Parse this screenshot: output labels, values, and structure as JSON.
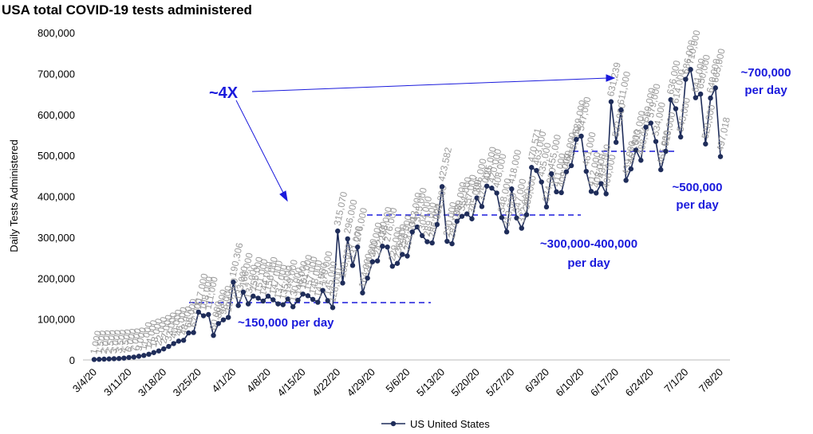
{
  "chart_data": {
    "type": "line",
    "title": "USA total COVID-19 tests administered",
    "y_label": "Daily Tests Administered",
    "categories": [
      "3/4/20",
      null,
      null,
      null,
      null,
      null,
      null,
      "3/11/20",
      null,
      null,
      null,
      null,
      null,
      null,
      "3/18/20",
      null,
      null,
      null,
      null,
      null,
      null,
      "3/25/20",
      null,
      null,
      null,
      null,
      null,
      null,
      "4/1/20",
      null,
      null,
      null,
      null,
      null,
      null,
      "4/8/20",
      null,
      null,
      null,
      null,
      null,
      null,
      "4/15/20",
      null,
      null,
      null,
      null,
      null,
      null,
      "4/22/20",
      null,
      null,
      null,
      null,
      null,
      null,
      "4/29/20",
      null,
      null,
      null,
      null,
      null,
      null,
      "5/6/20",
      null,
      null,
      null,
      null,
      null,
      null,
      "5/13/20",
      null,
      null,
      null,
      null,
      null,
      null,
      "5/20/20",
      null,
      null,
      null,
      null,
      null,
      null,
      "5/27/20",
      null,
      null,
      null,
      null,
      null,
      null,
      "6/3/20",
      null,
      null,
      null,
      null,
      null,
      null,
      "6/10/20",
      null,
      null,
      null,
      null,
      null,
      null,
      "6/17/20",
      null,
      null,
      null,
      null,
      null,
      null,
      "6/24/20",
      null,
      null,
      null,
      null,
      null,
      null,
      "7/1/20",
      null,
      null,
      null,
      null,
      null,
      null,
      "7/8/20"
    ],
    "series": [
      {
        "name": "US United States",
        "color": "#1f2d5a",
        "values": [
          1000,
          1500,
          2000,
          2500,
          3000,
          3500,
          4500,
          6000,
          7000,
          9000,
          11000,
          14000,
          18000,
          22000,
          27000,
          33000,
          40000,
          46000,
          48000,
          66000,
          67000,
          117000,
          108000,
          111000,
          60000,
          89000,
          98000,
          104000,
          190306,
          133000,
          166000,
          137000,
          156000,
          151000,
          144000,
          156000,
          147000,
          137000,
          135000,
          149000,
          130000,
          146000,
          161000,
          157000,
          148000,
          141000,
          170000,
          145000,
          128000,
          315070,
          188000,
          296000,
          231000,
          276000,
          164000,
          200000,
          240000,
          242000,
          278000,
          276000,
          229000,
          236000,
          258000,
          254000,
          313000,
          325000,
          304000,
          289000,
          286000,
          331000,
          423582,
          290000,
          284000,
          339000,
          351000,
          357000,
          345000,
          396000,
          375000,
          425000,
          420000,
          408000,
          348000,
          313000,
          418000,
          347000,
          322000,
          355000,
          470571,
          463000,
          435000,
          374000,
          455000,
          411000,
          409000,
          460000,
          475000,
          539000,
          547000,
          461000,
          412000,
          408000,
          431000,
          406000,
          631239,
          532000,
          611000,
          439000,
          467000,
          513000,
          488000,
          569000,
          579000,
          534000,
          465000,
          510000,
          636000,
          614000,
          545000,
          686000,
          710000,
          641000,
          650000,
          528000,
          640000,
          665000,
          497018
        ],
        "value_labels": [
          "1,000",
          "1,500",
          "2,000",
          "2,500",
          "3,000",
          "3,500",
          "4,500",
          "6,000",
          "7,000",
          "9,000",
          "11,000",
          "14,000",
          "18,000",
          "22,000",
          "27,000",
          "33,000",
          "40,000",
          "46,000",
          "48,000",
          "66,000",
          "67,000",
          "117,000",
          "108,000",
          "111,000",
          "60,000",
          "89,000",
          "98,000",
          "104,000",
          "190,306",
          "133,000",
          "166,000",
          "137,000",
          "156,000",
          "151,000",
          "144,000",
          "156,000",
          "147,000",
          "137,000",
          "135,000",
          "149,000",
          "130,000",
          "146,000",
          "161,000",
          "157,000",
          "148,000",
          "141,000",
          "170,000",
          "145,000",
          "128,000",
          "315,070",
          "188,000",
          "296,000",
          "231,000",
          "276,000",
          "164,000",
          "200,000",
          "240,000",
          "242,000",
          "278,000",
          "276,000",
          "229,000",
          "236,000",
          "258,000",
          "254,000",
          "313,000",
          "325,000",
          "304,000",
          "289,000",
          "286,000",
          "331,000",
          "423,582",
          "290,000",
          "284,000",
          "339,000",
          "351,000",
          "357,000",
          "345,000",
          "396,000",
          "375,000",
          "425,000",
          "420,000",
          "408,000",
          "348,000",
          "313,000",
          "418,000",
          "347,000",
          "322,000",
          "355,000",
          "470,571",
          "463,000",
          "435,000",
          "374,000",
          "455,000",
          "411,000",
          "409,000",
          "460,000",
          "475,000",
          "539,000",
          "547,000",
          "461,000",
          "412,000",
          "408,000",
          "431,000",
          "406,000",
          "631,239",
          "532,000",
          "611,000",
          "439,000",
          "467,000",
          "513,000",
          "488,000",
          "569,000",
          "579,000",
          "534,000",
          "465,000",
          "510,000",
          "636,000",
          "614,000",
          "545,000",
          "686,000",
          "710,000",
          "641,000",
          "650,000",
          "528,000",
          "640,000",
          "665,000",
          "497,018"
        ]
      }
    ],
    "ylim": [
      0,
      800000
    ],
    "yticks": [
      0,
      {
        "value": 100000,
        "label": "100,000"
      },
      {
        "value": 200000,
        "label": "200,000"
      },
      {
        "value": 300000,
        "label": "300,000"
      },
      {
        "value": 400000,
        "label": "400,000"
      },
      {
        "value": 500000,
        "label": "500,000"
      },
      {
        "value": 600000,
        "label": "600,000"
      },
      {
        "value": 700000,
        "label": "700,000"
      },
      {
        "value": 800000,
        "label": "800,000"
      }
    ],
    "annotations": [
      [
        "~4X"
      ],
      [
        "~700,000",
        "per day"
      ],
      [
        "~500,000",
        "per day"
      ],
      [
        "~300,000-400,000",
        "per day"
      ],
      [
        "~150,000  per day"
      ]
    ],
    "legend": "bottom"
  }
}
